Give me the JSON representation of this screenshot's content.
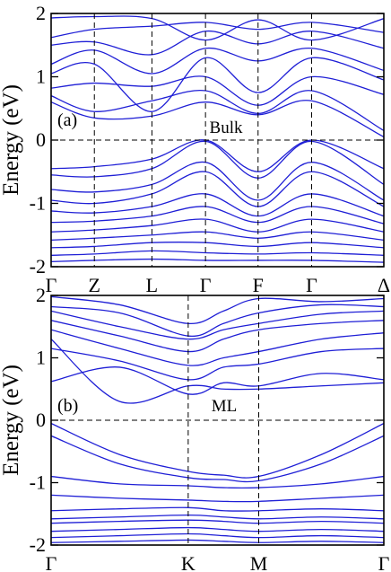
{
  "chart_data": [
    {
      "type": "line",
      "panel_label": "(a)",
      "annotation": "Bulk",
      "ylabel": "Energy (eV)",
      "ylim": [
        -2,
        2
      ],
      "yticks": [
        -2,
        -1,
        0,
        1,
        2
      ],
      "ytick_labels": [
        "-2",
        "-1",
        "0",
        "1",
        "2"
      ],
      "xlim": [
        0,
        10
      ],
      "kpoints": [
        {
          "label": "Γ",
          "pos": 0
        },
        {
          "label": "Z",
          "pos": 1.3
        },
        {
          "label": "L",
          "pos": 3.03
        },
        {
          "label": "Γ",
          "pos": 4.64
        },
        {
          "label": "F",
          "pos": 6.22
        },
        {
          "label": "Γ",
          "pos": 7.83
        },
        {
          "label": "Δ",
          "pos": 10
        }
      ],
      "fermi_level": 0,
      "grid": "dashed verticals at high-symmetry points, dashed line at 0 eV",
      "line_color": "#1f1fd6",
      "series": [
        {
          "x": [
            0,
            1.3,
            3.03,
            4.64,
            6.22,
            7.83,
            10
          ],
          "y": [
            1.93,
            1.95,
            1.92,
            1.58,
            1.9,
            1.58,
            1.92
          ]
        },
        {
          "x": [
            0,
            1.3,
            3.03,
            4.64,
            6.22,
            7.83,
            10
          ],
          "y": [
            1.62,
            1.75,
            1.8,
            1.86,
            1.75,
            1.86,
            1.7
          ]
        },
        {
          "x": [
            0,
            1.3,
            3.03,
            4.64,
            6.22,
            7.83,
            10
          ],
          "y": [
            1.5,
            1.55,
            1.35,
            1.72,
            1.52,
            1.72,
            1.45
          ]
        },
        {
          "x": [
            0,
            1.3,
            3.03,
            4.64,
            6.22,
            7.83,
            10
          ],
          "y": [
            1.2,
            1.42,
            1.05,
            1.45,
            1.25,
            1.45,
            1.1
          ]
        },
        {
          "x": [
            0,
            1.3,
            3.03,
            4.64,
            6.22,
            7.83,
            10
          ],
          "y": [
            1.05,
            1.2,
            0.45,
            1.3,
            0.75,
            1.3,
            0.95
          ]
        },
        {
          "x": [
            0,
            1.3,
            3.03,
            4.64,
            6.22,
            7.83,
            10
          ],
          "y": [
            0.82,
            0.9,
            0.85,
            1.0,
            0.55,
            1.0,
            0.72
          ]
        },
        {
          "x": [
            0,
            1.3,
            3.03,
            4.64,
            6.22,
            7.83,
            10
          ],
          "y": [
            0.7,
            0.45,
            0.62,
            0.78,
            0.42,
            0.78,
            0.15
          ]
        },
        {
          "x": [
            0,
            1.3,
            3.03,
            4.64,
            6.22,
            7.83,
            10
          ],
          "y": [
            0.6,
            0.35,
            0.38,
            0.6,
            0.4,
            0.62,
            0.05
          ]
        },
        {
          "x": [
            0,
            1.3,
            3.03,
            4.64,
            6.22,
            7.83,
            10
          ],
          "y": [
            -0.45,
            -0.42,
            -0.3,
            0.0,
            -0.5,
            0.0,
            -0.45
          ]
        },
        {
          "x": [
            0,
            1.3,
            3.03,
            4.64,
            6.22,
            7.83,
            10
          ],
          "y": [
            -0.55,
            -0.58,
            -0.45,
            -0.02,
            -0.6,
            -0.02,
            -0.7
          ]
        },
        {
          "x": [
            0,
            1.3,
            3.03,
            4.64,
            6.22,
            7.83,
            10
          ],
          "y": [
            -0.78,
            -0.82,
            -0.7,
            -0.35,
            -0.95,
            -0.35,
            -0.95
          ]
        },
        {
          "x": [
            0,
            1.3,
            3.03,
            4.64,
            6.22,
            7.83,
            10
          ],
          "y": [
            -0.95,
            -1.0,
            -0.85,
            -0.5,
            -1.05,
            -0.5,
            -1.05
          ]
        },
        {
          "x": [
            0,
            1.3,
            3.03,
            4.64,
            6.22,
            7.83,
            10
          ],
          "y": [
            -1.12,
            -1.15,
            -1.05,
            -0.85,
            -1.2,
            -0.85,
            -1.2
          ]
        },
        {
          "x": [
            0,
            1.3,
            3.03,
            4.64,
            6.22,
            7.83,
            10
          ],
          "y": [
            -1.3,
            -1.28,
            -1.2,
            -1.05,
            -1.3,
            -1.05,
            -1.32
          ]
        },
        {
          "x": [
            0,
            1.3,
            3.03,
            4.64,
            6.22,
            7.83,
            10
          ],
          "y": [
            -1.45,
            -1.42,
            -1.35,
            -1.25,
            -1.45,
            -1.25,
            -1.45
          ]
        },
        {
          "x": [
            0,
            1.3,
            3.03,
            4.64,
            6.22,
            7.83,
            10
          ],
          "y": [
            -1.58,
            -1.55,
            -1.5,
            -1.45,
            -1.55,
            -1.45,
            -1.58
          ]
        },
        {
          "x": [
            0,
            1.3,
            3.03,
            4.64,
            6.22,
            7.83,
            10
          ],
          "y": [
            -1.7,
            -1.68,
            -1.62,
            -1.62,
            -1.68,
            -1.62,
            -1.7
          ]
        },
        {
          "x": [
            0,
            1.3,
            3.03,
            4.64,
            6.22,
            7.83,
            10
          ],
          "y": [
            -1.82,
            -1.8,
            -1.75,
            -1.78,
            -1.8,
            -1.78,
            -1.82
          ]
        },
        {
          "x": [
            0,
            1.3,
            3.03,
            4.64,
            6.22,
            7.83,
            10
          ],
          "y": [
            -1.92,
            -1.9,
            -1.88,
            -1.9,
            -1.9,
            -1.9,
            -1.93
          ]
        }
      ]
    },
    {
      "type": "line",
      "panel_label": "(b)",
      "annotation": "ML",
      "ylabel": "Energy (eV)",
      "ylim": [
        -2,
        2
      ],
      "yticks": [
        -2,
        -1,
        0,
        1,
        2
      ],
      "ytick_labels": [
        "-2",
        "-1",
        "0",
        "1",
        "2"
      ],
      "xlim": [
        0,
        10
      ],
      "kpoints": [
        {
          "label": "Γ",
          "pos": 0
        },
        {
          "label": "K",
          "pos": 4.12
        },
        {
          "label": "M",
          "pos": 6.24
        },
        {
          "label": "Γ",
          "pos": 10
        }
      ],
      "fermi_level": 0,
      "grid": "dashed verticals at high-symmetry points, dashed line at 0 eV",
      "line_color": "#1f1fd6",
      "series": [
        {
          "x": [
            0,
            2.06,
            4.12,
            5.18,
            6.24,
            8.12,
            10
          ],
          "y": [
            1.98,
            1.85,
            1.55,
            1.75,
            1.95,
            1.9,
            1.95
          ]
        },
        {
          "x": [
            0,
            2.06,
            4.12,
            5.18,
            6.24,
            8.12,
            10
          ],
          "y": [
            1.82,
            1.72,
            1.35,
            1.55,
            1.72,
            1.85,
            1.82
          ]
        },
        {
          "x": [
            0,
            2.06,
            4.12,
            5.18,
            6.24,
            8.12,
            10
          ],
          "y": [
            1.75,
            1.5,
            1.3,
            1.45,
            1.55,
            1.7,
            1.75
          ]
        },
        {
          "x": [
            0,
            2.06,
            4.12,
            5.18,
            6.24,
            8.12,
            10
          ],
          "y": [
            1.6,
            1.35,
            1.1,
            1.3,
            1.45,
            1.55,
            1.6
          ]
        },
        {
          "x": [
            0,
            2.06,
            4.12,
            5.18,
            6.24,
            8.12,
            10
          ],
          "y": [
            1.45,
            1.15,
            0.88,
            1.0,
            1.1,
            1.3,
            1.4
          ]
        },
        {
          "x": [
            0,
            2.06,
            4.12,
            5.18,
            6.24,
            8.12,
            10
          ],
          "y": [
            1.15,
            0.95,
            0.65,
            0.85,
            0.9,
            1.1,
            1.15
          ]
        },
        {
          "x": [
            0,
            2.06,
            4.12,
            5.18,
            6.24,
            8.12,
            10
          ],
          "y": [
            0.62,
            0.85,
            0.42,
            0.6,
            0.55,
            0.75,
            0.65
          ]
        },
        {
          "x": [
            0,
            2.06,
            4.12,
            5.18,
            6.24,
            8.12,
            10
          ],
          "y": [
            1.3,
            0.3,
            0.55,
            0.5,
            0.5,
            0.55,
            0.6
          ]
        },
        {
          "x": [
            0,
            2.06,
            4.12,
            5.18,
            6.24,
            8.12,
            10
          ],
          "y": [
            -0.05,
            -0.55,
            -0.82,
            -0.88,
            -0.9,
            -0.55,
            -0.05
          ]
        },
        {
          "x": [
            0,
            2.06,
            4.12,
            5.18,
            6.24,
            8.12,
            10
          ],
          "y": [
            -0.25,
            -0.7,
            -0.92,
            -0.95,
            -0.97,
            -0.7,
            -0.25
          ]
        },
        {
          "x": [
            0,
            2.06,
            4.12,
            5.18,
            6.24,
            8.12,
            10
          ],
          "y": [
            -0.9,
            -1.02,
            -1.05,
            -1.08,
            -1.08,
            -1.02,
            -0.9
          ]
        },
        {
          "x": [
            0,
            2.06,
            4.12,
            5.18,
            6.24,
            8.12,
            10
          ],
          "y": [
            -1.2,
            -1.25,
            -1.28,
            -1.3,
            -1.3,
            -1.25,
            -1.2
          ]
        },
        {
          "x": [
            0,
            2.06,
            4.12,
            5.18,
            6.24,
            8.12,
            10
          ],
          "y": [
            -1.45,
            -1.42,
            -1.4,
            -1.45,
            -1.45,
            -1.42,
            -1.45
          ]
        },
        {
          "x": [
            0,
            2.06,
            4.12,
            5.18,
            6.24,
            8.12,
            10
          ],
          "y": [
            -1.58,
            -1.55,
            -1.52,
            -1.55,
            -1.58,
            -1.55,
            -1.58
          ]
        },
        {
          "x": [
            0,
            2.06,
            4.12,
            5.18,
            6.24,
            8.12,
            10
          ],
          "y": [
            -1.65,
            -1.62,
            -1.6,
            -1.62,
            -1.65,
            -1.62,
            -1.65
          ]
        },
        {
          "x": [
            0,
            2.06,
            4.12,
            5.18,
            6.24,
            8.12,
            10
          ],
          "y": [
            -1.78,
            -1.75,
            -1.72,
            -1.75,
            -1.78,
            -1.75,
            -1.78
          ]
        },
        {
          "x": [
            0,
            2.06,
            4.12,
            5.18,
            6.24,
            8.12,
            10
          ],
          "y": [
            -1.88,
            -1.85,
            -1.82,
            -1.85,
            -1.88,
            -1.85,
            -1.88
          ]
        },
        {
          "x": [
            0,
            2.06,
            4.12,
            5.18,
            6.24,
            8.12,
            10
          ],
          "y": [
            -1.96,
            -1.94,
            -1.92,
            -1.94,
            -1.96,
            -1.94,
            -1.96
          ]
        }
      ]
    }
  ]
}
